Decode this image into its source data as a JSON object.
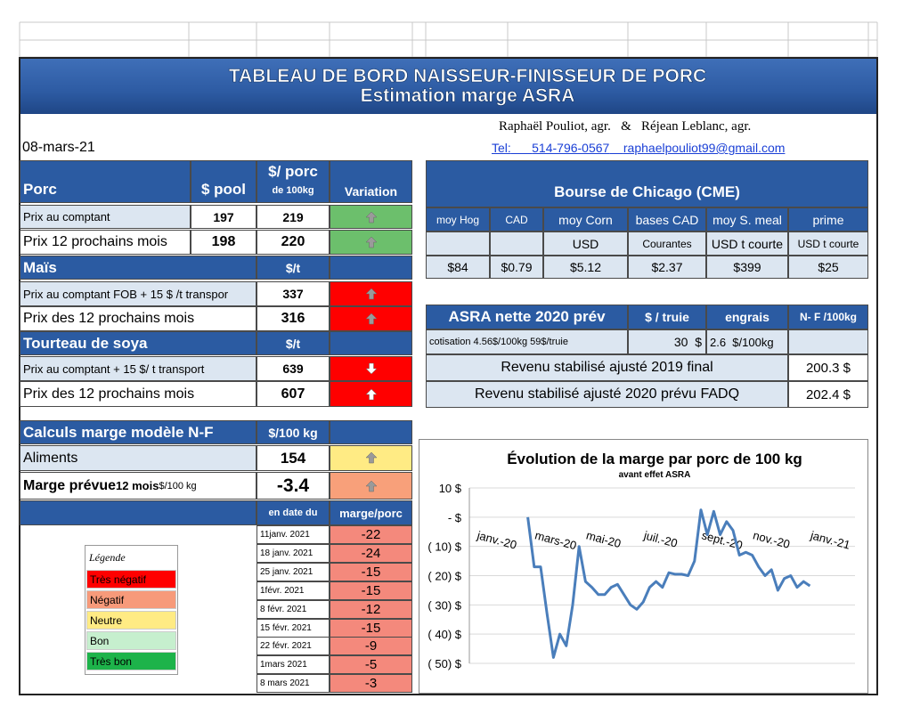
{
  "header": {
    "title": "TABLEAU DE BORD NAISSEUR-FINISSEUR  DE PORC",
    "subtitle": "Estimation marge ASRA",
    "authors": "Raphaël Pouliot, agr.   &   Réjean Leblanc, agr.",
    "tel": "Tel:",
    "phone": "514-796-0567",
    "email": "raphaelpouliot99@gmail.com",
    "date": "08-mars-21"
  },
  "porc": {
    "headers": [
      "Porc",
      "$ pool",
      "$/ porc",
      "de 100kg",
      "Variation"
    ],
    "rows": [
      [
        "Prix au comptant",
        "197",
        "219"
      ],
      [
        "Prix 12 prochains mois",
        "198",
        "220"
      ]
    ]
  },
  "mais": {
    "headers": [
      "Maïs",
      "$/t"
    ],
    "rows": [
      [
        "Prix au comptant  FOB + 15 $ /t transpor",
        "337"
      ],
      [
        "Prix des 12 prochains mois",
        "316"
      ]
    ]
  },
  "soya": {
    "headers": [
      "Tourteau de soya",
      "$/t"
    ],
    "rows": [
      [
        "Prix au comptant  + 15 $/ t  transport",
        "639"
      ],
      [
        "Prix des 12 prochains mois",
        "607"
      ]
    ]
  },
  "calculs": {
    "headers": [
      "Calculs marge  modèle N-F",
      "$/100 kg"
    ],
    "rows": [
      {
        "label": "Aliments",
        "value": "154"
      },
      {
        "label": "Marge prévue",
        "label_small": "12 mois",
        "unit": "$/100 kg",
        "value": "-3.4"
      }
    ]
  },
  "history": {
    "headers": [
      "en date du",
      "marge/porc"
    ],
    "rows": [
      [
        "11janv. 2021",
        "-22"
      ],
      [
        "18 janv. 2021",
        "-24"
      ],
      [
        "25 janv. 2021",
        "-15"
      ],
      [
        "1févr. 2021",
        "-15"
      ],
      [
        "8 févr. 2021",
        "-12"
      ],
      [
        "15 févr. 2021",
        "-15"
      ],
      [
        "22 févr. 2021",
        "-9"
      ],
      [
        "1mars 2021",
        "-5"
      ],
      [
        "8 mars 2021",
        "-3"
      ]
    ]
  },
  "legend": {
    "title": "Légende",
    "items": [
      "Très négatif",
      "Négatif",
      "Neutre",
      "Bon",
      "Très bon"
    ]
  },
  "bourse": {
    "title": "Bourse de Chicago (CME)",
    "headers": [
      "moy Hog",
      "CAD",
      "moy Corn",
      "bases CAD",
      "moy S. meal",
      "prime"
    ],
    "units": [
      "USD",
      "Courantes",
      "USD t courte",
      "USD t courte"
    ],
    "values": [
      "$84",
      "$0.79",
      "$5.12",
      "$2.37",
      "$399",
      "$25"
    ]
  },
  "asra": {
    "headers": [
      "ASRA nette 2020 prév",
      "$ / truie",
      "engrais",
      "N- F /100kg"
    ],
    "cotisation": "cotisation 4.56$/100kg  59$/truie",
    "truie": "30  $",
    "engrais": "2.6  $/100kg",
    "rows": [
      [
        "Revenu stabilisé ajusté 2019 final",
        "200.3 $"
      ],
      [
        "Revenu stabilisé ajusté 2020 prévu FADQ",
        "202.4 $"
      ]
    ]
  },
  "chart_data": {
    "type": "line",
    "title": "Évolution de la marge par porc de 100 kg",
    "subtitle": "avant effet ASRA",
    "categories": [
      "janv.-20",
      null,
      null,
      null,
      null,
      null,
      null,
      null,
      null,
      "mars-20",
      null,
      null,
      null,
      null,
      null,
      null,
      null,
      "mai-20",
      null,
      null,
      null,
      null,
      null,
      null,
      null,
      null,
      "juil.-20",
      null,
      null,
      null,
      null,
      null,
      null,
      null,
      null,
      "sept.-20",
      null,
      null,
      null,
      null,
      null,
      null,
      null,
      "nov.-20",
      null,
      null,
      null,
      null,
      null,
      null,
      null,
      null,
      "janv.-21"
    ],
    "values": [
      null,
      null,
      null,
      null,
      null,
      null,
      null,
      null,
      0,
      -17,
      -17,
      -33,
      -48,
      -40,
      -44,
      -30,
      -10,
      -22,
      -24,
      -26.5,
      -26.5,
      -24,
      -23,
      -26.5,
      -30,
      -31.5,
      -29,
      -24,
      -22,
      -24,
      -19,
      -19.5,
      -19.5,
      -20,
      -15,
      2.5,
      -6,
      2,
      -6,
      -1.5,
      -4.5,
      -13,
      -12,
      -13,
      -17,
      -20,
      -18,
      -25,
      -21,
      -20,
      -24,
      -22,
      -23.5
    ],
    "color": "#4a7ebb",
    "ylim": [
      -50,
      10
    ],
    "yticks": [
      {
        "value": 10,
        "label": "10 $"
      },
      {
        "value": 0,
        "label": "-  $"
      },
      {
        "value": -10,
        "label": "( 10) $"
      },
      {
        "value": -20,
        "label": "( 20) $"
      },
      {
        "value": -30,
        "label": "( 30) $"
      },
      {
        "value": -40,
        "label": "( 40) $"
      },
      {
        "value": -50,
        "label": "( 50) $"
      }
    ],
    "grid": true
  }
}
